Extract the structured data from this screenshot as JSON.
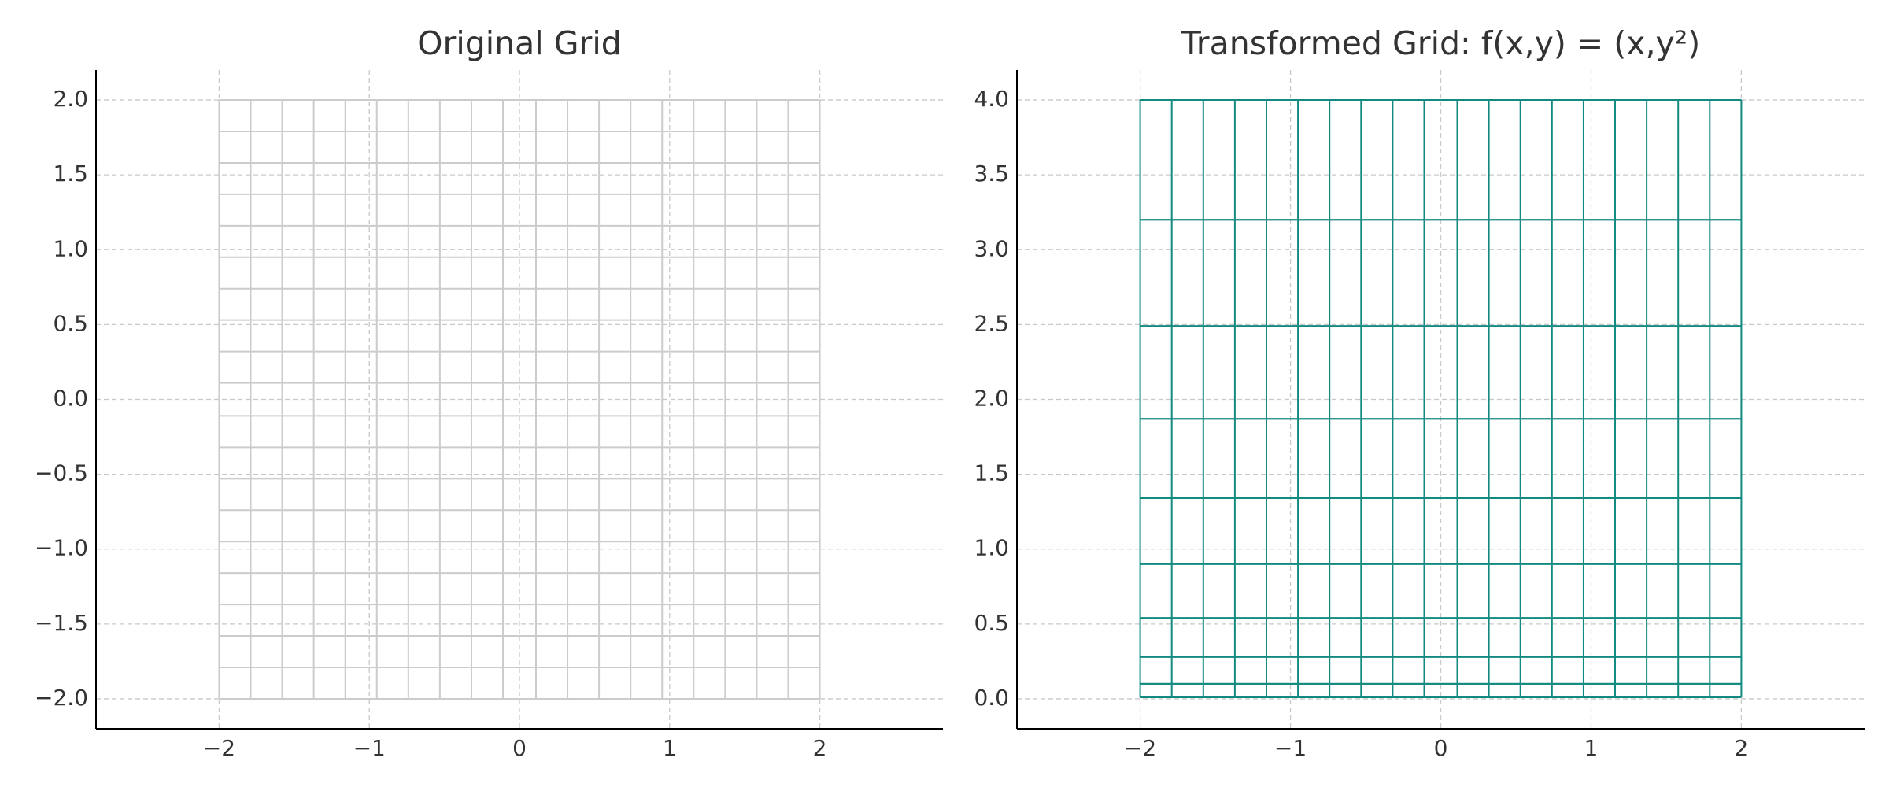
{
  "chart_data": [
    {
      "type": "grid",
      "title": "Original Grid",
      "color": "#cccccc",
      "grid": true,
      "x_lines": [
        -2,
        -1.79,
        -1.58,
        -1.37,
        -1.16,
        -0.95,
        -0.74,
        -0.53,
        -0.32,
        -0.11,
        0.11,
        0.32,
        0.53,
        0.74,
        0.95,
        1.16,
        1.37,
        1.58,
        1.79,
        2
      ],
      "y_lines": [
        -2,
        -1.79,
        -1.58,
        -1.37,
        -1.16,
        -0.95,
        -0.74,
        -0.53,
        -0.32,
        -0.11,
        0.11,
        0.32,
        0.53,
        0.74,
        0.95,
        1.16,
        1.37,
        1.58,
        1.79,
        2
      ],
      "xlim": [
        -2.82,
        2.82
      ],
      "ylim": [
        -2.2,
        2.2
      ],
      "xticks": [
        {
          "value": -2,
          "label": "−2"
        },
        {
          "value": -1,
          "label": "−1"
        },
        0,
        1,
        2
      ],
      "yticks": [
        {
          "value": -2,
          "label": "−2.0"
        },
        {
          "value": -1.5,
          "label": "−1.5"
        },
        {
          "value": -1,
          "label": "−1.0"
        },
        {
          "value": -0.5,
          "label": "−0.5"
        },
        {
          "value": 0,
          "label": "0.0"
        },
        0.5,
        {
          "value": 1,
          "label": "1.0"
        },
        1.5,
        {
          "value": 2,
          "label": "2.0"
        }
      ]
    },
    {
      "type": "grid",
      "title": "Transformed Grid: f(x,y) = (x,y²)",
      "color": "#138a80",
      "grid": true,
      "x_lines": [
        -2,
        -1.79,
        -1.58,
        -1.37,
        -1.16,
        -0.95,
        -0.74,
        -0.53,
        -0.32,
        -0.11,
        0.11,
        0.32,
        0.53,
        0.74,
        0.95,
        1.16,
        1.37,
        1.58,
        1.79,
        2
      ],
      "y_lines": [
        4,
        3.2,
        2.49,
        1.87,
        1.34,
        0.9,
        0.54,
        0.28,
        0.1,
        0.01,
        0.01,
        0.1,
        0.28,
        0.54,
        0.9,
        1.34,
        1.87,
        2.49,
        3.2,
        4
      ],
      "xlim": [
        -2.82,
        2.82
      ],
      "ylim": [
        -0.2,
        4.2
      ],
      "xticks": [
        {
          "value": -2,
          "label": "−2"
        },
        {
          "value": -1,
          "label": "−1"
        },
        0,
        1,
        2
      ],
      "yticks": [
        {
          "value": 0,
          "label": "0.0"
        },
        0.5,
        {
          "value": 1,
          "label": "1.0"
        },
        1.5,
        {
          "value": 2,
          "label": "2.0"
        },
        2.5,
        {
          "value": 3,
          "label": "3.0"
        },
        3.5,
        {
          "value": 4,
          "label": "4.0"
        }
      ]
    }
  ]
}
